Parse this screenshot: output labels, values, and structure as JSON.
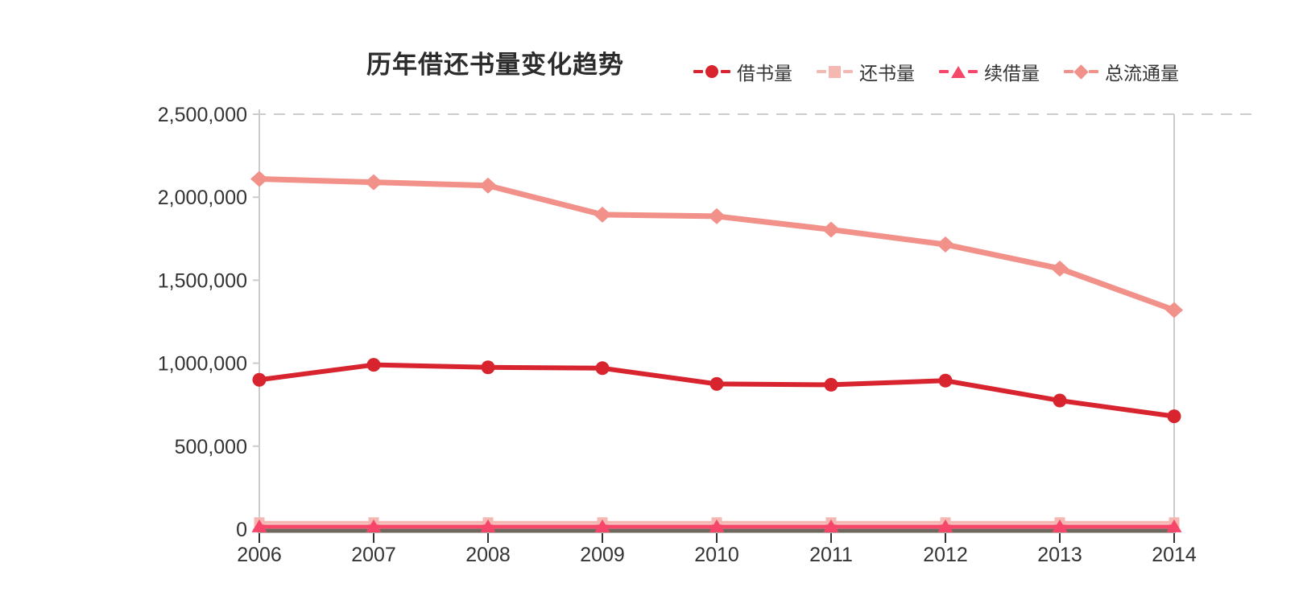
{
  "chart_data": {
    "type": "line",
    "title": "历年借还书量变化趋势",
    "categories": [
      "2006",
      "2007",
      "2008",
      "2009",
      "2010",
      "2011",
      "2012",
      "2013",
      "2014"
    ],
    "series": [
      {
        "key": "borrow",
        "name": "借书量",
        "marker": "circle",
        "color": "#d8242f",
        "values": [
          900000,
          990000,
          975000,
          970000,
          875000,
          870000,
          895000,
          775000,
          680000
        ]
      },
      {
        "key": "return",
        "name": "还书量",
        "marker": "square",
        "color": "#f4b7b1",
        "values": [
          40000,
          40000,
          40000,
          40000,
          40000,
          40000,
          40000,
          40000,
          40000
        ]
      },
      {
        "key": "renew",
        "name": "续借量",
        "marker": "triangle",
        "color": "#f6476b",
        "values": [
          15000,
          15000,
          15000,
          15000,
          15000,
          15000,
          15000,
          15000,
          15000
        ]
      },
      {
        "key": "total",
        "name": "总流通量",
        "marker": "diamond",
        "color": "#f29189",
        "values": [
          2110000,
          2090000,
          2070000,
          1895000,
          1885000,
          1805000,
          1715000,
          1570000,
          1320000
        ]
      }
    ],
    "y_ticks": [
      "2,500,000",
      "2,000,000",
      "1,500,000",
      "1,000,000",
      "500,000",
      "0"
    ],
    "ylim": [
      0,
      2500000
    ],
    "xlabel": "",
    "ylabel": "",
    "grid": "dashed gridline at y max only",
    "legend_position": "top-right",
    "axis_colors": {
      "x_axis_line": "#6e675e",
      "side_axis_line": "#cccccc",
      "top_dashed_line": "#cccccc",
      "tick_label": "#333333",
      "title": "#2c2c2c"
    }
  }
}
